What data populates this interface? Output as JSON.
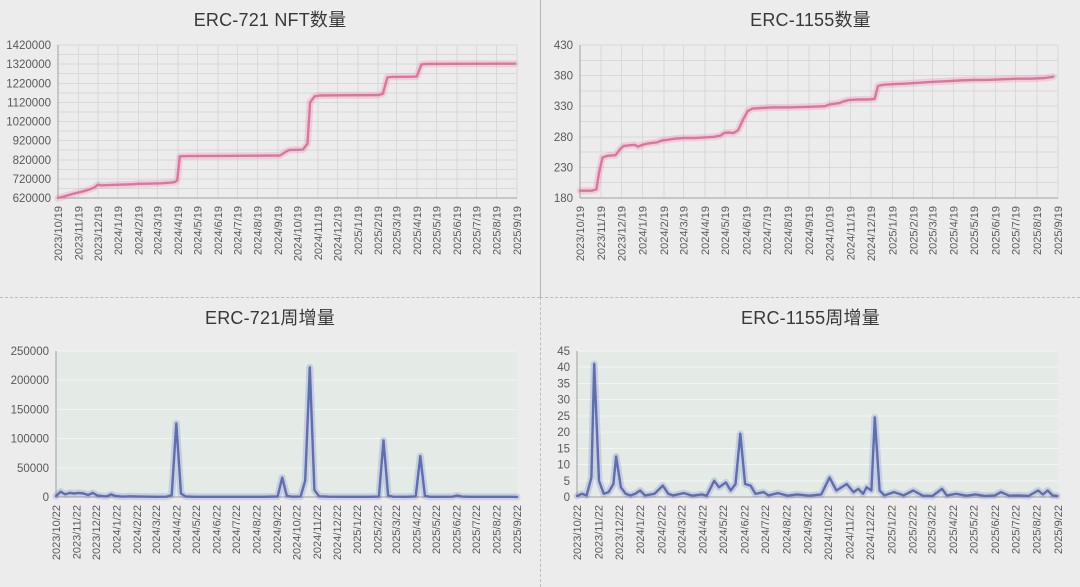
{
  "page": {
    "background": "#ececec",
    "divider_color": "#b5b5b5"
  },
  "chart_data": [
    {
      "id": "erc721-total",
      "type": "line",
      "title": "ERC-721 NFT数量",
      "xlabel": "",
      "ylabel": "",
      "line_color": "#e0739e",
      "plot_bg": null,
      "grid_color": "#d9d9d9",
      "grid_vertical": true,
      "legend": "none",
      "ylim": [
        620000,
        1420000
      ],
      "y_minor_step": 50000,
      "y_tick_values": [
        620000,
        720000,
        820000,
        920000,
        1020000,
        1120000,
        1220000,
        1320000,
        1420000
      ],
      "y_tick_labels": [
        "620000",
        "720000",
        "820000",
        "920000",
        "1020000",
        "1120000",
        "1220000",
        "1320000",
        "1420000"
      ],
      "x_tick_labels": [
        "2023/10/19",
        "2023/11/19",
        "2023/12/19",
        "2024/1/19",
        "2024/2/19",
        "2024/3/19",
        "2024/4/19",
        "2024/5/19",
        "2024/6/19",
        "2024/7/19",
        "2024/8/19",
        "2024/9/19",
        "2024/10/19",
        "2024/11/19",
        "2024/12/19",
        "2025/1/19",
        "2025/2/19",
        "2025/3/19",
        "2025/4/19",
        "2025/5/19",
        "2025/6/19",
        "2025/7/19",
        "2025/8/19",
        "2025/9/19"
      ],
      "points": [
        [
          "2023/10/19",
          620000
        ],
        [
          "2023/10/26",
          626000
        ],
        [
          "2023/11/2",
          633000
        ],
        [
          "2023/11/9",
          640000
        ],
        [
          "2023/11/16",
          646000
        ],
        [
          "2023/11/23",
          652000
        ],
        [
          "2023/11/30",
          658000
        ],
        [
          "2023/12/7",
          666000
        ],
        [
          "2023/12/14",
          676000
        ],
        [
          "2023/12/19",
          690000
        ],
        [
          "2023/12/24",
          686000
        ],
        [
          "2023/12/31",
          687000
        ],
        [
          "2024/1/14",
          689000
        ],
        [
          "2024/1/28",
          690000
        ],
        [
          "2024/2/11",
          692000
        ],
        [
          "2024/2/18",
          694000
        ],
        [
          "2024/3/3",
          695000
        ],
        [
          "2024/3/24",
          697000
        ],
        [
          "2024/4/7",
          700000
        ],
        [
          "2024/4/14",
          703000
        ],
        [
          "2024/4/18",
          712000
        ],
        [
          "2024/4/22",
          838000
        ],
        [
          "2024/5/5",
          839000
        ],
        [
          "2024/6/19",
          840000
        ],
        [
          "2024/8/19",
          841000
        ],
        [
          "2024/9/22",
          842000
        ],
        [
          "2024/9/29",
          858000
        ],
        [
          "2024/10/6",
          871000
        ],
        [
          "2024/10/20",
          872000
        ],
        [
          "2024/10/27",
          873000
        ],
        [
          "2024/11/3",
          905000
        ],
        [
          "2024/11/7",
          1120000
        ],
        [
          "2024/11/14",
          1152000
        ],
        [
          "2024/11/21",
          1156000
        ],
        [
          "2024/12/19",
          1157000
        ],
        [
          "2025/1/19",
          1157500
        ],
        [
          "2025/2/19",
          1158000
        ],
        [
          "2025/2/26",
          1165000
        ],
        [
          "2025/3/5",
          1251000
        ],
        [
          "2025/3/12",
          1253000
        ],
        [
          "2025/4/12",
          1254000
        ],
        [
          "2025/4/19",
          1256000
        ],
        [
          "2025/4/26",
          1318000
        ],
        [
          "2025/5/3",
          1321000
        ],
        [
          "2025/6/19",
          1321500
        ],
        [
          "2025/8/19",
          1322000
        ],
        [
          "2025/9/16",
          1322000
        ]
      ]
    },
    {
      "id": "erc1155-total",
      "type": "line",
      "title": "ERC-1155数量",
      "xlabel": "",
      "ylabel": "",
      "line_color": "#e0739e",
      "plot_bg": null,
      "grid_color": "#d9d9d9",
      "grid_vertical": true,
      "legend": "none",
      "ylim": [
        180,
        430
      ],
      "y_minor_step": 25,
      "y_tick_values": [
        180,
        230,
        280,
        330,
        380,
        430
      ],
      "y_tick_labels": [
        "180",
        "230",
        "280",
        "330",
        "380",
        "430"
      ],
      "x_tick_labels": [
        "2023/10/19",
        "2023/11/19",
        "2023/12/19",
        "2024/1/19",
        "2024/2/19",
        "2024/3/19",
        "2024/4/19",
        "2024/5/19",
        "2024/6/19",
        "2024/7/19",
        "2024/8/19",
        "2024/9/19",
        "2024/10/19",
        "2024/11/19",
        "2024/12/19",
        "2025/1/19",
        "2025/2/19",
        "2025/3/19",
        "2025/4/19",
        "2025/5/19",
        "2025/6/19",
        "2025/7/19",
        "2025/8/19",
        "2025/9/19"
      ],
      "points": [
        [
          "2023/10/19",
          192
        ],
        [
          "2023/11/5",
          192
        ],
        [
          "2023/11/12",
          194
        ],
        [
          "2023/11/16",
          222
        ],
        [
          "2023/11/21",
          246
        ],
        [
          "2023/11/28",
          249
        ],
        [
          "2023/12/10",
          250
        ],
        [
          "2023/12/17",
          260
        ],
        [
          "2023/12/22",
          265
        ],
        [
          "2023/12/29",
          266
        ],
        [
          "2024/1/7",
          267
        ],
        [
          "2024/1/12",
          264
        ],
        [
          "2024/1/19",
          267
        ],
        [
          "2024/1/26",
          269
        ],
        [
          "2024/2/9",
          271
        ],
        [
          "2024/2/16",
          274
        ],
        [
          "2024/2/23",
          275
        ],
        [
          "2024/3/8",
          277
        ],
        [
          "2024/3/19",
          278
        ],
        [
          "2024/4/5",
          278
        ],
        [
          "2024/4/19",
          279
        ],
        [
          "2024/5/3",
          280
        ],
        [
          "2024/5/12",
          282
        ],
        [
          "2024/5/17",
          286
        ],
        [
          "2024/5/24",
          287
        ],
        [
          "2024/5/31",
          286
        ],
        [
          "2024/6/7",
          291
        ],
        [
          "2024/6/14",
          308
        ],
        [
          "2024/6/21",
          322
        ],
        [
          "2024/6/28",
          326
        ],
        [
          "2024/7/12",
          327
        ],
        [
          "2024/7/26",
          328
        ],
        [
          "2024/8/19",
          328
        ],
        [
          "2024/9/19",
          329
        ],
        [
          "2024/10/12",
          330
        ],
        [
          "2024/10/19",
          333
        ],
        [
          "2024/11/2",
          335
        ],
        [
          "2024/11/9",
          338
        ],
        [
          "2024/11/16",
          340
        ],
        [
          "2024/11/30",
          341
        ],
        [
          "2024/12/14",
          341
        ],
        [
          "2024/12/24",
          342
        ],
        [
          "2024/12/29",
          363
        ],
        [
          "2025/1/5",
          365
        ],
        [
          "2025/1/19",
          366
        ],
        [
          "2025/2/9",
          367
        ],
        [
          "2025/2/23",
          368
        ],
        [
          "2025/3/9",
          369
        ],
        [
          "2025/3/23",
          370
        ],
        [
          "2025/4/13",
          371
        ],
        [
          "2025/4/27",
          372
        ],
        [
          "2025/5/18",
          373
        ],
        [
          "2025/6/8",
          373
        ],
        [
          "2025/6/29",
          374
        ],
        [
          "2025/7/20",
          375
        ],
        [
          "2025/8/10",
          375
        ],
        [
          "2025/8/31",
          376
        ],
        [
          "2025/9/12",
          378
        ]
      ]
    },
    {
      "id": "erc721-weekly",
      "type": "line",
      "title": "ERC-721周增量",
      "xlabel": "",
      "ylabel": "",
      "line_color": "#5e6db4",
      "plot_bg": "#e4ebe6",
      "grid_color": "#f2f6f3",
      "grid_vertical": false,
      "legend": "none",
      "ylim": [
        0,
        250000
      ],
      "y_minor_step": 50000,
      "y_tick_values": [
        0,
        50000,
        100000,
        150000,
        200000,
        250000
      ],
      "y_tick_labels": [
        "0",
        "50000",
        "100000",
        "150000",
        "200000",
        "250000"
      ],
      "x_tick_labels": [
        "2023/10/22",
        "2023/11/22",
        "2023/12/22",
        "2024/1/22",
        "2024/2/22",
        "2024/3/22",
        "2024/4/22",
        "2024/5/22",
        "2024/6/22",
        "2024/7/22",
        "2024/8/22",
        "2024/9/22",
        "2024/10/22",
        "2024/11/22",
        "2024/12/22",
        "2025/1/22",
        "2025/2/22",
        "2025/3/22",
        "2025/4/22",
        "2025/5/22",
        "2025/6/22",
        "2025/7/22",
        "2025/8/22",
        "2025/9/22"
      ],
      "points": [
        [
          "2023/10/22",
          1500
        ],
        [
          "2023/10/29",
          9000
        ],
        [
          "2023/11/5",
          4500
        ],
        [
          "2023/11/12",
          7000
        ],
        [
          "2023/11/19",
          6000
        ],
        [
          "2023/11/26",
          7000
        ],
        [
          "2023/12/3",
          6000
        ],
        [
          "2023/12/10",
          3500
        ],
        [
          "2023/12/17",
          7000
        ],
        [
          "2023/12/24",
          2500
        ],
        [
          "2023/12/31",
          1500
        ],
        [
          "2024/1/7",
          1000
        ],
        [
          "2024/1/14",
          4500
        ],
        [
          "2024/1/21",
          1500
        ],
        [
          "2024/1/28",
          800
        ],
        [
          "2024/2/4",
          600
        ],
        [
          "2024/2/11",
          1200
        ],
        [
          "2024/2/18",
          800
        ],
        [
          "2024/2/25",
          600
        ],
        [
          "2024/3/10",
          500
        ],
        [
          "2024/3/24",
          400
        ],
        [
          "2024/4/7",
          500
        ],
        [
          "2024/4/15",
          3000
        ],
        [
          "2024/4/22",
          126000
        ],
        [
          "2024/4/29",
          6000
        ],
        [
          "2024/5/6",
          800
        ],
        [
          "2024/5/20",
          400
        ],
        [
          "2024/6/10",
          300
        ],
        [
          "2024/7/8",
          400
        ],
        [
          "2024/8/5",
          300
        ],
        [
          "2024/9/2",
          400
        ],
        [
          "2024/9/23",
          800
        ],
        [
          "2024/9/30",
          33000
        ],
        [
          "2024/10/7",
          2000
        ],
        [
          "2024/10/14",
          500
        ],
        [
          "2024/10/28",
          600
        ],
        [
          "2024/11/4",
          28000
        ],
        [
          "2024/11/11",
          222000
        ],
        [
          "2024/11/18",
          12000
        ],
        [
          "2024/11/25",
          1200
        ],
        [
          "2024/12/9",
          500
        ],
        [
          "2024/12/30",
          400
        ],
        [
          "2025/1/20",
          300
        ],
        [
          "2025/2/10",
          400
        ],
        [
          "2025/2/24",
          600
        ],
        [
          "2025/3/3",
          97000
        ],
        [
          "2025/3/10",
          2500
        ],
        [
          "2025/3/17",
          500
        ],
        [
          "2025/4/7",
          400
        ],
        [
          "2025/4/21",
          1000
        ],
        [
          "2025/4/28",
          70000
        ],
        [
          "2025/5/5",
          2000
        ],
        [
          "2025/5/12",
          400
        ],
        [
          "2025/6/2",
          300
        ],
        [
          "2025/6/16",
          500
        ],
        [
          "2025/6/23",
          2500
        ],
        [
          "2025/6/30",
          600
        ],
        [
          "2025/7/14",
          300
        ],
        [
          "2025/8/4",
          300
        ],
        [
          "2025/8/25",
          300
        ],
        [
          "2025/9/15",
          300
        ],
        [
          "2025/9/22",
          200
        ]
      ]
    },
    {
      "id": "erc1155-weekly",
      "type": "line",
      "title": "ERC-1155周增量",
      "xlabel": "",
      "ylabel": "",
      "line_color": "#5e6db4",
      "plot_bg": "#e4ebe6",
      "grid_color": "#f2f6f3",
      "grid_vertical": false,
      "legend": "none",
      "ylim": [
        0,
        45
      ],
      "y_minor_step": 5,
      "y_tick_values": [
        0,
        5,
        10,
        15,
        20,
        25,
        30,
        35,
        40,
        45
      ],
      "y_tick_labels": [
        "0",
        "5",
        "10",
        "15",
        "20",
        "25",
        "30",
        "35",
        "40",
        "45"
      ],
      "x_tick_labels": [
        "2023/10/22",
        "2023/11/22",
        "2023/12/22",
        "2024/1/22",
        "2024/2/22",
        "2024/3/22",
        "2024/4/22",
        "2024/5/22",
        "2024/6/22",
        "2024/7/22",
        "2024/8/22",
        "2024/9/22",
        "2024/10/22",
        "2024/11/22",
        "2024/12/22",
        "2025/1/22",
        "2025/2/22",
        "2025/3/22",
        "2025/4/22",
        "2025/5/22",
        "2025/6/22",
        "2025/7/22",
        "2025/8/22",
        "2025/9/22"
      ],
      "points": [
        [
          "2023/10/22",
          0.3
        ],
        [
          "2023/10/29",
          1
        ],
        [
          "2023/11/5",
          0.5
        ],
        [
          "2023/11/12",
          6
        ],
        [
          "2023/11/16",
          41
        ],
        [
          "2023/11/23",
          5
        ],
        [
          "2023/11/30",
          1
        ],
        [
          "2023/12/7",
          1.5
        ],
        [
          "2023/12/14",
          4
        ],
        [
          "2023/12/18",
          12.5
        ],
        [
          "2023/12/25",
          3
        ],
        [
          "2024/1/1",
          1
        ],
        [
          "2024/1/8",
          0.5
        ],
        [
          "2024/1/15",
          1
        ],
        [
          "2024/1/22",
          2
        ],
        [
          "2024/1/29",
          0.5
        ],
        [
          "2024/2/12",
          1
        ],
        [
          "2024/2/24",
          3.5
        ],
        [
          "2024/3/3",
          1
        ],
        [
          "2024/3/10",
          0.5
        ],
        [
          "2024/3/26",
          1.2
        ],
        [
          "2024/4/7",
          0.4
        ],
        [
          "2024/4/21",
          0.8
        ],
        [
          "2024/4/28",
          0.4
        ],
        [
          "2024/5/9",
          5
        ],
        [
          "2024/5/16",
          3
        ],
        [
          "2024/5/26",
          4.5
        ],
        [
          "2024/6/2",
          2
        ],
        [
          "2024/6/9",
          4
        ],
        [
          "2024/6/16",
          19.5
        ],
        [
          "2024/6/23",
          4
        ],
        [
          "2024/7/1",
          3.5
        ],
        [
          "2024/7/8",
          1
        ],
        [
          "2024/7/20",
          1.5
        ],
        [
          "2024/7/27",
          0.5
        ],
        [
          "2024/8/10",
          1.2
        ],
        [
          "2024/8/24",
          0.4
        ],
        [
          "2024/9/7",
          0.8
        ],
        [
          "2024/9/25",
          0.4
        ],
        [
          "2024/10/12",
          0.8
        ],
        [
          "2024/10/24",
          6
        ],
        [
          "2024/11/3",
          2
        ],
        [
          "2024/11/18",
          4
        ],
        [
          "2024/11/28",
          1.5
        ],
        [
          "2024/12/5",
          2.5
        ],
        [
          "2024/12/12",
          1
        ],
        [
          "2024/12/17",
          3
        ],
        [
          "2024/12/24",
          2
        ],
        [
          "2024/12/29",
          24.5
        ],
        [
          "2025/1/5",
          2
        ],
        [
          "2025/1/12",
          0.5
        ],
        [
          "2025/1/26",
          1.5
        ],
        [
          "2025/2/9",
          0.5
        ],
        [
          "2025/2/23",
          2
        ],
        [
          "2025/3/9",
          0.4
        ],
        [
          "2025/3/23",
          0.3
        ],
        [
          "2025/4/6",
          2.5
        ],
        [
          "2025/4/13",
          0.5
        ],
        [
          "2025/4/27",
          1
        ],
        [
          "2025/5/11",
          0.4
        ],
        [
          "2025/5/25",
          0.8
        ],
        [
          "2025/6/8",
          0.3
        ],
        [
          "2025/6/22",
          0.5
        ],
        [
          "2025/7/1",
          1.5
        ],
        [
          "2025/7/13",
          0.4
        ],
        [
          "2025/7/27",
          0.5
        ],
        [
          "2025/8/10",
          0.3
        ],
        [
          "2025/8/24",
          2
        ],
        [
          "2025/8/31",
          0.8
        ],
        [
          "2025/9/7",
          2
        ],
        [
          "2025/9/14",
          0.5
        ],
        [
          "2025/9/21",
          0.3
        ]
      ]
    }
  ]
}
